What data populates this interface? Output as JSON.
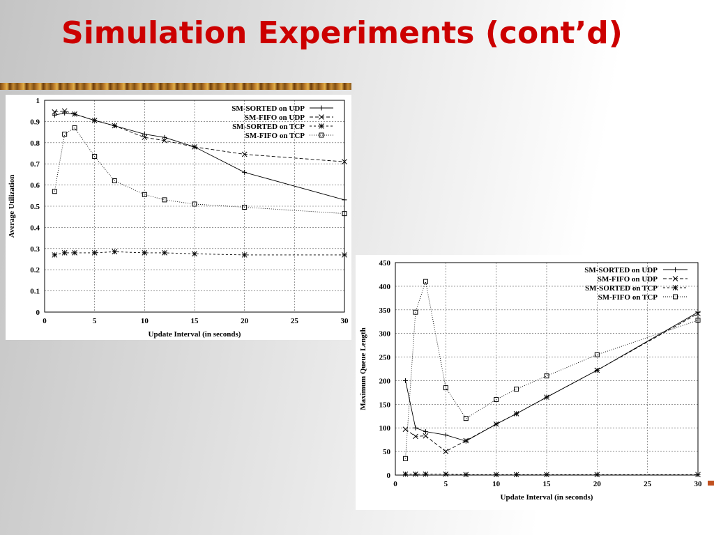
{
  "slide": {
    "title": "Simulation Experiments (cont’d)"
  },
  "colors": {
    "title": "#cc0000",
    "chart_ink": "#000000",
    "grid": "#555555"
  },
  "chart_data": [
    {
      "type": "line",
      "title": "",
      "xlabel": "Update Interval (in seconds)",
      "ylabel": "Average Utilization",
      "xlim": [
        0,
        30
      ],
      "ylim": [
        0,
        1
      ],
      "xticks": [
        0,
        5,
        10,
        15,
        20,
        25,
        30
      ],
      "yticks": [
        0,
        0.1,
        0.2,
        0.3,
        0.4,
        0.5,
        0.6,
        0.7,
        0.8,
        0.9,
        1
      ],
      "ytick_labels": [
        "0",
        "0.1",
        "0.2",
        "0.3",
        "0.4",
        "0.5",
        "0.6",
        "0.7",
        "0.8",
        "0.9",
        "1"
      ],
      "grid": true,
      "legend_position": "top-right",
      "series": [
        {
          "name": "SM-SORTED on UDP",
          "marker": "plus",
          "dash": "none",
          "x": [
            1,
            2,
            3,
            5,
            7,
            10,
            12,
            15,
            20,
            30
          ],
          "y": [
            0.93,
            0.94,
            0.935,
            0.905,
            0.88,
            0.84,
            0.825,
            0.78,
            0.66,
            0.53
          ]
        },
        {
          "name": "SM-FIFO on UDP",
          "marker": "x",
          "dash": "5,3",
          "x": [
            1,
            2,
            3,
            5,
            7,
            10,
            12,
            15,
            20,
            30
          ],
          "y": [
            0.945,
            0.95,
            0.935,
            0.905,
            0.88,
            0.825,
            0.81,
            0.78,
            0.745,
            0.71
          ]
        },
        {
          "name": "SM-SORTED on TCP",
          "marker": "star",
          "dash": "3,3",
          "x": [
            1,
            2,
            3,
            5,
            7,
            10,
            12,
            15,
            20,
            30
          ],
          "y": [
            0.27,
            0.28,
            0.28,
            0.28,
            0.285,
            0.28,
            0.28,
            0.275,
            0.27,
            0.27
          ]
        },
        {
          "name": "SM-FIFO on TCP",
          "marker": "square",
          "dash": "1,2",
          "x": [
            1,
            2,
            3,
            5,
            7,
            10,
            12,
            15,
            20,
            30
          ],
          "y": [
            0.57,
            0.84,
            0.87,
            0.735,
            0.62,
            0.555,
            0.53,
            0.51,
            0.495,
            0.465
          ]
        }
      ]
    },
    {
      "type": "line",
      "title": "",
      "xlabel": "Update Interval (in seconds)",
      "ylabel": "Maximum Queue Length",
      "xlim": [
        0,
        30
      ],
      "ylim": [
        0,
        450
      ],
      "xticks": [
        0,
        5,
        10,
        15,
        20,
        25,
        30
      ],
      "yticks": [
        0,
        50,
        100,
        150,
        200,
        250,
        300,
        350,
        400,
        450
      ],
      "ytick_labels": [
        "0",
        "50",
        "100",
        "150",
        "200",
        "250",
        "300",
        "350",
        "400",
        "450"
      ],
      "grid": true,
      "legend_position": "top-right",
      "series": [
        {
          "name": "SM-SORTED on UDP",
          "marker": "plus",
          "dash": "none",
          "x": [
            1,
            2,
            3,
            5,
            7,
            10,
            12,
            15,
            20,
            30
          ],
          "y": [
            200,
            100,
            92,
            85,
            72,
            108,
            130,
            165,
            222,
            345
          ]
        },
        {
          "name": "SM-FIFO on UDP",
          "marker": "x",
          "dash": "5,3",
          "x": [
            1,
            2,
            3,
            5,
            7,
            10,
            12,
            15,
            20,
            30
          ],
          "y": [
            97,
            82,
            83,
            50,
            73,
            108,
            130,
            165,
            222,
            342
          ]
        },
        {
          "name": "SM-SORTED on TCP",
          "marker": "star",
          "dash": "3,3",
          "x": [
            1,
            2,
            3,
            5,
            7,
            10,
            12,
            15,
            20,
            30
          ],
          "y": [
            2,
            2,
            2,
            2,
            1,
            1,
            1,
            1,
            1,
            1
          ]
        },
        {
          "name": "SM-FIFO on TCP",
          "marker": "square",
          "dash": "1,2",
          "x": [
            1,
            2,
            3,
            5,
            7,
            10,
            12,
            15,
            20,
            30
          ],
          "y": [
            35,
            345,
            410,
            185,
            120,
            160,
            182,
            210,
            255,
            328
          ]
        }
      ]
    }
  ]
}
